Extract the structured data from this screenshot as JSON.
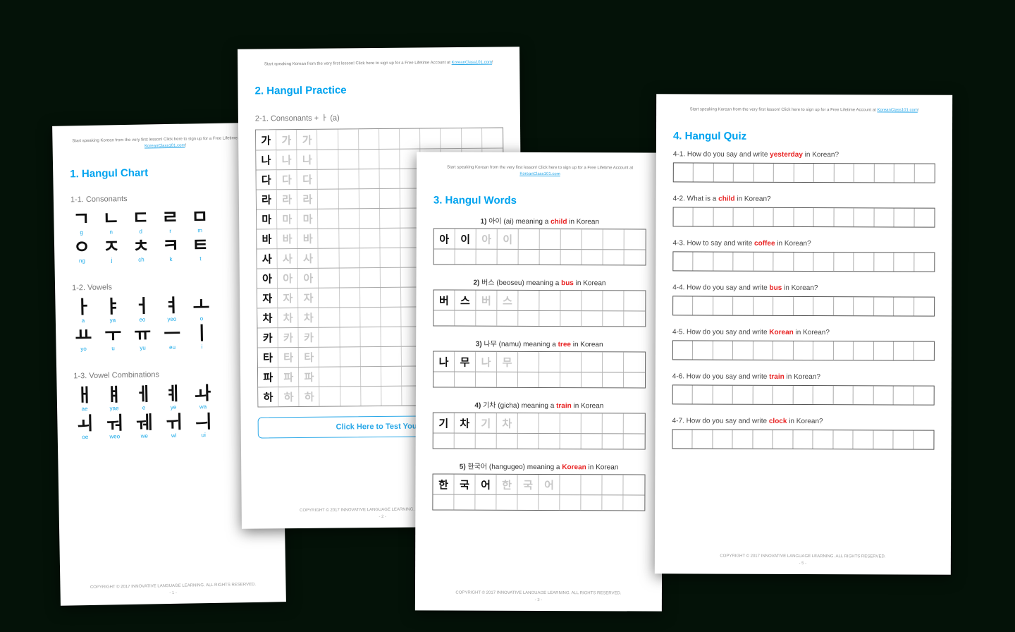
{
  "header_note_pre": "Start speaking Korean from the very first lesson! Click here to sign up for a Free Lifetime Account at ",
  "header_link": "KoreanClass101.com",
  "header_note_post": "!",
  "footer": "COPYRIGHT © 2017 INNOVATIVE LANGUAGE LEARNING. ALL RIGHTS RESERVED.",
  "page1": {
    "title": "1. Hangul Chart",
    "sub1": "1-1. Consonants",
    "sub2": "1-2. Vowels",
    "sub3": "1-3. Vowel Combinations",
    "cons_row1": [
      {
        "c": "ㄱ",
        "r": "g"
      },
      {
        "c": "ㄴ",
        "r": "n"
      },
      {
        "c": "ㄷ",
        "r": "d"
      },
      {
        "c": "ㄹ",
        "r": "r"
      },
      {
        "c": "ㅁ",
        "r": "m"
      }
    ],
    "cons_row2": [
      {
        "c": "ㅇ",
        "r": "ng"
      },
      {
        "c": "ㅈ",
        "r": "j"
      },
      {
        "c": "ㅊ",
        "r": "ch"
      },
      {
        "c": "ㅋ",
        "r": "k"
      },
      {
        "c": "ㅌ",
        "r": "t"
      }
    ],
    "vow_row1": [
      {
        "c": "ㅏ",
        "r": "a"
      },
      {
        "c": "ㅑ",
        "r": "ya"
      },
      {
        "c": "ㅓ",
        "r": "eo"
      },
      {
        "c": "ㅕ",
        "r": "yeo"
      },
      {
        "c": "ㅗ",
        "r": "o"
      }
    ],
    "vow_row2": [
      {
        "c": "ㅛ",
        "r": "yo"
      },
      {
        "c": "ㅜ",
        "r": "u"
      },
      {
        "c": "ㅠ",
        "r": "yu"
      },
      {
        "c": "ㅡ",
        "r": "eu"
      },
      {
        "c": "ㅣ",
        "r": "i"
      }
    ],
    "comb_row1": [
      {
        "c": "ㅐ",
        "r": "ae"
      },
      {
        "c": "ㅒ",
        "r": "yae"
      },
      {
        "c": "ㅔ",
        "r": "e"
      },
      {
        "c": "ㅖ",
        "r": "ye"
      },
      {
        "c": "ㅘ",
        "r": "wa"
      }
    ],
    "comb_row2": [
      {
        "c": "ㅚ",
        "r": "oe"
      },
      {
        "c": "ㅝ",
        "r": "weo"
      },
      {
        "c": "ㅞ",
        "r": "we"
      },
      {
        "c": "ㅟ",
        "r": "wi"
      },
      {
        "c": "ㅢ",
        "r": "ui"
      }
    ],
    "pagenum": "- 1 -"
  },
  "page2": {
    "title": "2. Hangul Practice",
    "sub": "2-1. Consonants + ㅏ (a)",
    "rows": [
      "가",
      "나",
      "다",
      "라",
      "마",
      "바",
      "사",
      "아",
      "자",
      "차",
      "카",
      "타",
      "파",
      "하"
    ],
    "test_btn": "Click Here to Test Your H",
    "pagenum": "- 2 -"
  },
  "page3": {
    "title": "3. Hangul Words",
    "items": [
      {
        "n": "1)",
        "ko": "아이",
        "rom": "(ai)",
        "meaning": "child",
        "chars": [
          "아",
          "이"
        ],
        "faded": [
          "아",
          "이"
        ]
      },
      {
        "n": "2)",
        "ko": "버스",
        "rom": "(beoseu)",
        "meaning": "bus",
        "chars": [
          "버",
          "스"
        ],
        "faded": [
          "버",
          "스"
        ]
      },
      {
        "n": "3)",
        "ko": "나무",
        "rom": "(namu)",
        "meaning": "tree",
        "chars": [
          "나",
          "무"
        ],
        "faded": [
          "나",
          "무"
        ]
      },
      {
        "n": "4)",
        "ko": "기차",
        "rom": "(gicha)",
        "meaning": "train",
        "chars": [
          "기",
          "차"
        ],
        "faded": [
          "기",
          "차"
        ]
      },
      {
        "n": "5)",
        "ko": "한국어",
        "rom": "(hangugeo)",
        "meaning": "Korean",
        "chars": [
          "한",
          "국",
          "어"
        ],
        "faded": [
          "한",
          "국",
          "어"
        ]
      }
    ],
    "meaning_text": "meaning a",
    "in_korean": "in Korean",
    "pagenum": "- 3 -"
  },
  "page4": {
    "title": "4. Hangul Quiz",
    "items": [
      {
        "n": "4-1.",
        "pre": "How do you say and write",
        "word": "yesterday",
        "post": "in Korean?"
      },
      {
        "n": "4-2.",
        "pre": "What is a",
        "word": "child",
        "post": "in Korean?"
      },
      {
        "n": "4-3.",
        "pre": "How to say and write",
        "word": "coffee",
        "post": "in Korean?"
      },
      {
        "n": "4-4.",
        "pre": "How do you say and write",
        "word": "bus",
        "post": "in Korean?"
      },
      {
        "n": "4-5.",
        "pre": "How do you say and write",
        "word": "Korean",
        "post": "in Korean?"
      },
      {
        "n": "4-6.",
        "pre": "How do you say and write",
        "word": "train",
        "post": "in Korean?"
      },
      {
        "n": "4-7.",
        "pre": "How do you say and write",
        "word": "clock",
        "post": "in Korean?"
      }
    ],
    "pagenum": "- 5 -"
  }
}
